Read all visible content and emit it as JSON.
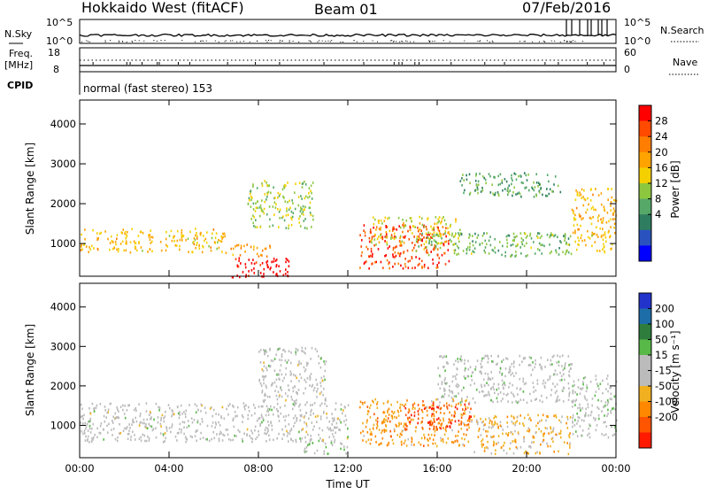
{
  "header": {
    "station": "Hokkaido West (fitACF)",
    "beam": "Beam 01",
    "date": "07/Feb/2016"
  },
  "summary_panel": {
    "nsky_label": "N.Sky",
    "nsky_ticks": [
      "10^5",
      "10^0"
    ],
    "nsearch_label": "N.Search",
    "nsearch_ticks": [
      "10^5",
      "10^0"
    ],
    "freq_label": "Freq.",
    "freq_unit": "[MHz]",
    "freq_ticks": [
      "18",
      "8"
    ],
    "nave_label": "Nave",
    "nave_ticks": [
      "60",
      "0"
    ],
    "cpid_label": "CPID",
    "cpid_text": "normal (fast stereo) 153"
  },
  "panels": {
    "power": {
      "ylabel": "Slant Range [km]",
      "yticks": [
        "4000",
        "3000",
        "2000",
        "1000"
      ],
      "colorbar_label": "Power [dB]",
      "colorbar_ticks": [
        "28",
        "24",
        "20",
        "16",
        "12",
        "8",
        "4"
      ],
      "colorbar_colors": [
        "#ff0000",
        "#ff4a00",
        "#ff7d00",
        "#ffa300",
        "#f5d000",
        "#8cc73f",
        "#55a868",
        "#2e7d60",
        "#2a52be",
        "#0000ff"
      ]
    },
    "velocity": {
      "ylabel": "Slant Range [km]",
      "yticks": [
        "4000",
        "3000",
        "2000",
        "1000"
      ],
      "colorbar_label": "Velocity [m s⁻¹]",
      "colorbar_ticks": [
        "200",
        "100",
        "50",
        "15",
        "-15",
        "-50",
        "-100",
        "-200"
      ],
      "colorbar_colors": [
        "#2233cc",
        "#1d6ea8",
        "#2e7d3c",
        "#58b848",
        "#bbbbbb",
        "#bbbbbb",
        "#f0b020",
        "#ff8800",
        "#ff5500",
        "#ff1a00"
      ]
    }
  },
  "xaxis": {
    "label": "Time UT",
    "ticks": [
      "00:00",
      "04:00",
      "08:00",
      "12:00",
      "16:00",
      "20:00",
      "00:00"
    ]
  },
  "chart_data": [
    {
      "type": "heatmap",
      "title": "",
      "xlabel": "Time UT",
      "ylabel": "Slant Range [km]",
      "xlim": [
        "00:00",
        "24:00"
      ],
      "ylim": [
        180,
        4600
      ],
      "colorbar": {
        "label": "Power [dB]",
        "range": [
          0,
          30
        ]
      },
      "regions": [
        {
          "t": [
            0.0,
            6.5
          ],
          "r": [
            800,
            1400
          ],
          "value": 18
        },
        {
          "t": [
            6.5,
            8.5
          ],
          "r": [
            700,
            1000
          ],
          "value": 20
        },
        {
          "t": [
            6.8,
            9.5
          ],
          "r": [
            180,
            700
          ],
          "value": 30
        },
        {
          "t": [
            7.5,
            10.5
          ],
          "r": [
            1400,
            2600
          ],
          "value": 14
        },
        {
          "t": [
            12.5,
            16.5
          ],
          "r": [
            400,
            1500
          ],
          "value": 26
        },
        {
          "t": [
            13.0,
            17.0
          ],
          "r": [
            1000,
            1700
          ],
          "value": 16
        },
        {
          "t": [
            15.0,
            22.0
          ],
          "r": [
            700,
            1300
          ],
          "value": 12
        },
        {
          "t": [
            17.0,
            21.5
          ],
          "r": [
            2200,
            2800
          ],
          "value": 10
        },
        {
          "t": [
            22.0,
            24.0
          ],
          "r": [
            800,
            2400
          ],
          "value": 18
        }
      ]
    },
    {
      "type": "heatmap",
      "title": "",
      "xlabel": "Time UT",
      "ylabel": "Slant Range [km]",
      "xlim": [
        "00:00",
        "24:00"
      ],
      "ylim": [
        180,
        4600
      ],
      "colorbar": {
        "label": "Velocity [m s⁻¹]",
        "range": [
          -200,
          200
        ]
      },
      "regions": [
        {
          "t": [
            0.0,
            12.0
          ],
          "r": [
            600,
            1600
          ],
          "value": 0
        },
        {
          "t": [
            8.0,
            11.0
          ],
          "r": [
            1500,
            3000
          ],
          "value": 0
        },
        {
          "t": [
            10.0,
            12.0
          ],
          "r": [
            300,
            600
          ],
          "value": 30
        },
        {
          "t": [
            12.5,
            17.5
          ],
          "r": [
            500,
            1700
          ],
          "value": -80
        },
        {
          "t": [
            14.5,
            17.5
          ],
          "r": [
            900,
            1600
          ],
          "value": -150
        },
        {
          "t": [
            17.5,
            22.0
          ],
          "r": [
            300,
            1300
          ],
          "value": -60
        },
        {
          "t": [
            16.0,
            22.0
          ],
          "r": [
            1600,
            2800
          ],
          "value": 5
        },
        {
          "t": [
            22.0,
            24.0
          ],
          "r": [
            700,
            2300
          ],
          "value": 10
        }
      ]
    }
  ]
}
